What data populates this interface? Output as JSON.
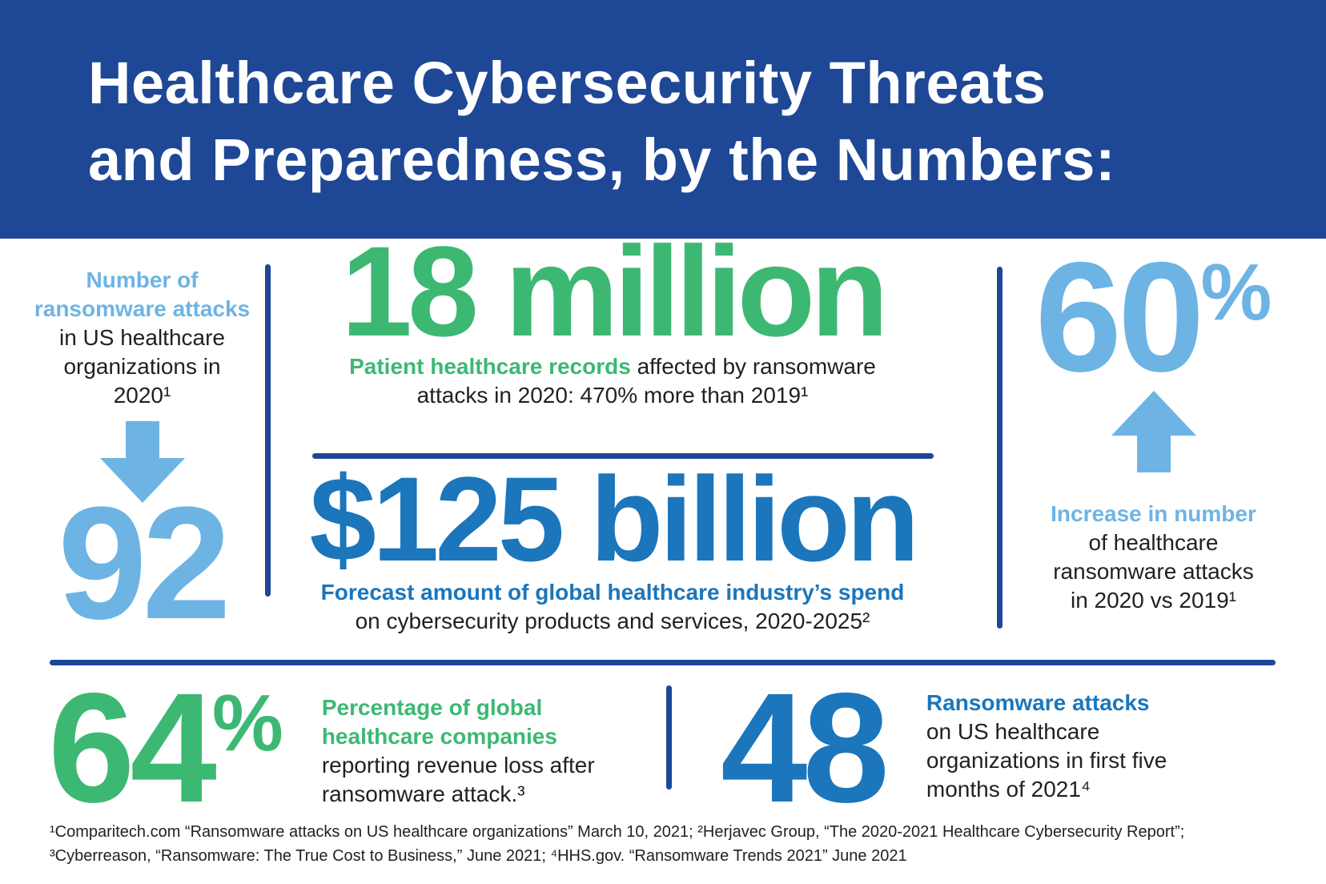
{
  "header": {
    "title_line1": "Healthcare Cybersecurity Threats",
    "title_line2": "and Preparedness, by the Numbers:"
  },
  "colors": {
    "header_bg": "#1e4796",
    "divider_blue": "#1e4796",
    "light_blue": "#6db4e4",
    "green": "#3db873",
    "medium_blue": "#1b76bc",
    "body_text": "#231f20",
    "title_text": "#ffffff"
  },
  "stats": {
    "ransomware_2020": {
      "label_highlight": "Number of ransomware attacks",
      "label_rest": " in US healthcare organizations in 2020¹",
      "arrow": "down-arrow",
      "value": "92"
    },
    "patient_records": {
      "value": "18 million",
      "caption_highlight": "Patient healthcare records",
      "caption_rest": " affected by ransomware attacks in 2020: 470% more than 2019¹"
    },
    "cyber_spend": {
      "value": "$125 billion",
      "caption_highlight": "Forecast amount of global healthcare industry’s spend",
      "caption_rest": "on cybersecurity products and services, 2020-2025²"
    },
    "increase_2020": {
      "value": "60",
      "value_suffix": "%",
      "arrow": "up-arrow",
      "caption_highlight": "Increase in number",
      "caption_rest": "of healthcare ransomware attacks in 2020 vs 2019¹"
    },
    "revenue_loss": {
      "value": "64",
      "value_suffix": "%",
      "caption_highlight": "Percentage of global healthcare companies",
      "caption_rest": "reporting revenue loss after ransomware attack.³"
    },
    "attacks_2021": {
      "value": "48",
      "caption_highlight": "Ransomware attacks",
      "caption_rest": "on US healthcare organizations in first five months of 2021⁴"
    }
  },
  "footer": {
    "line1": "¹Comparitech.com “Ransomware attacks on US healthcare organizations” March 10, 2021; ²Herjavec Group, “The 2020-2021 Healthcare Cybersecurity Report”;",
    "line2": "³Cyberreason, “Ransomware: The True Cost to Business,” June 2021; ⁴HHS.gov. “Ransomware Trends 2021” June 2021"
  }
}
